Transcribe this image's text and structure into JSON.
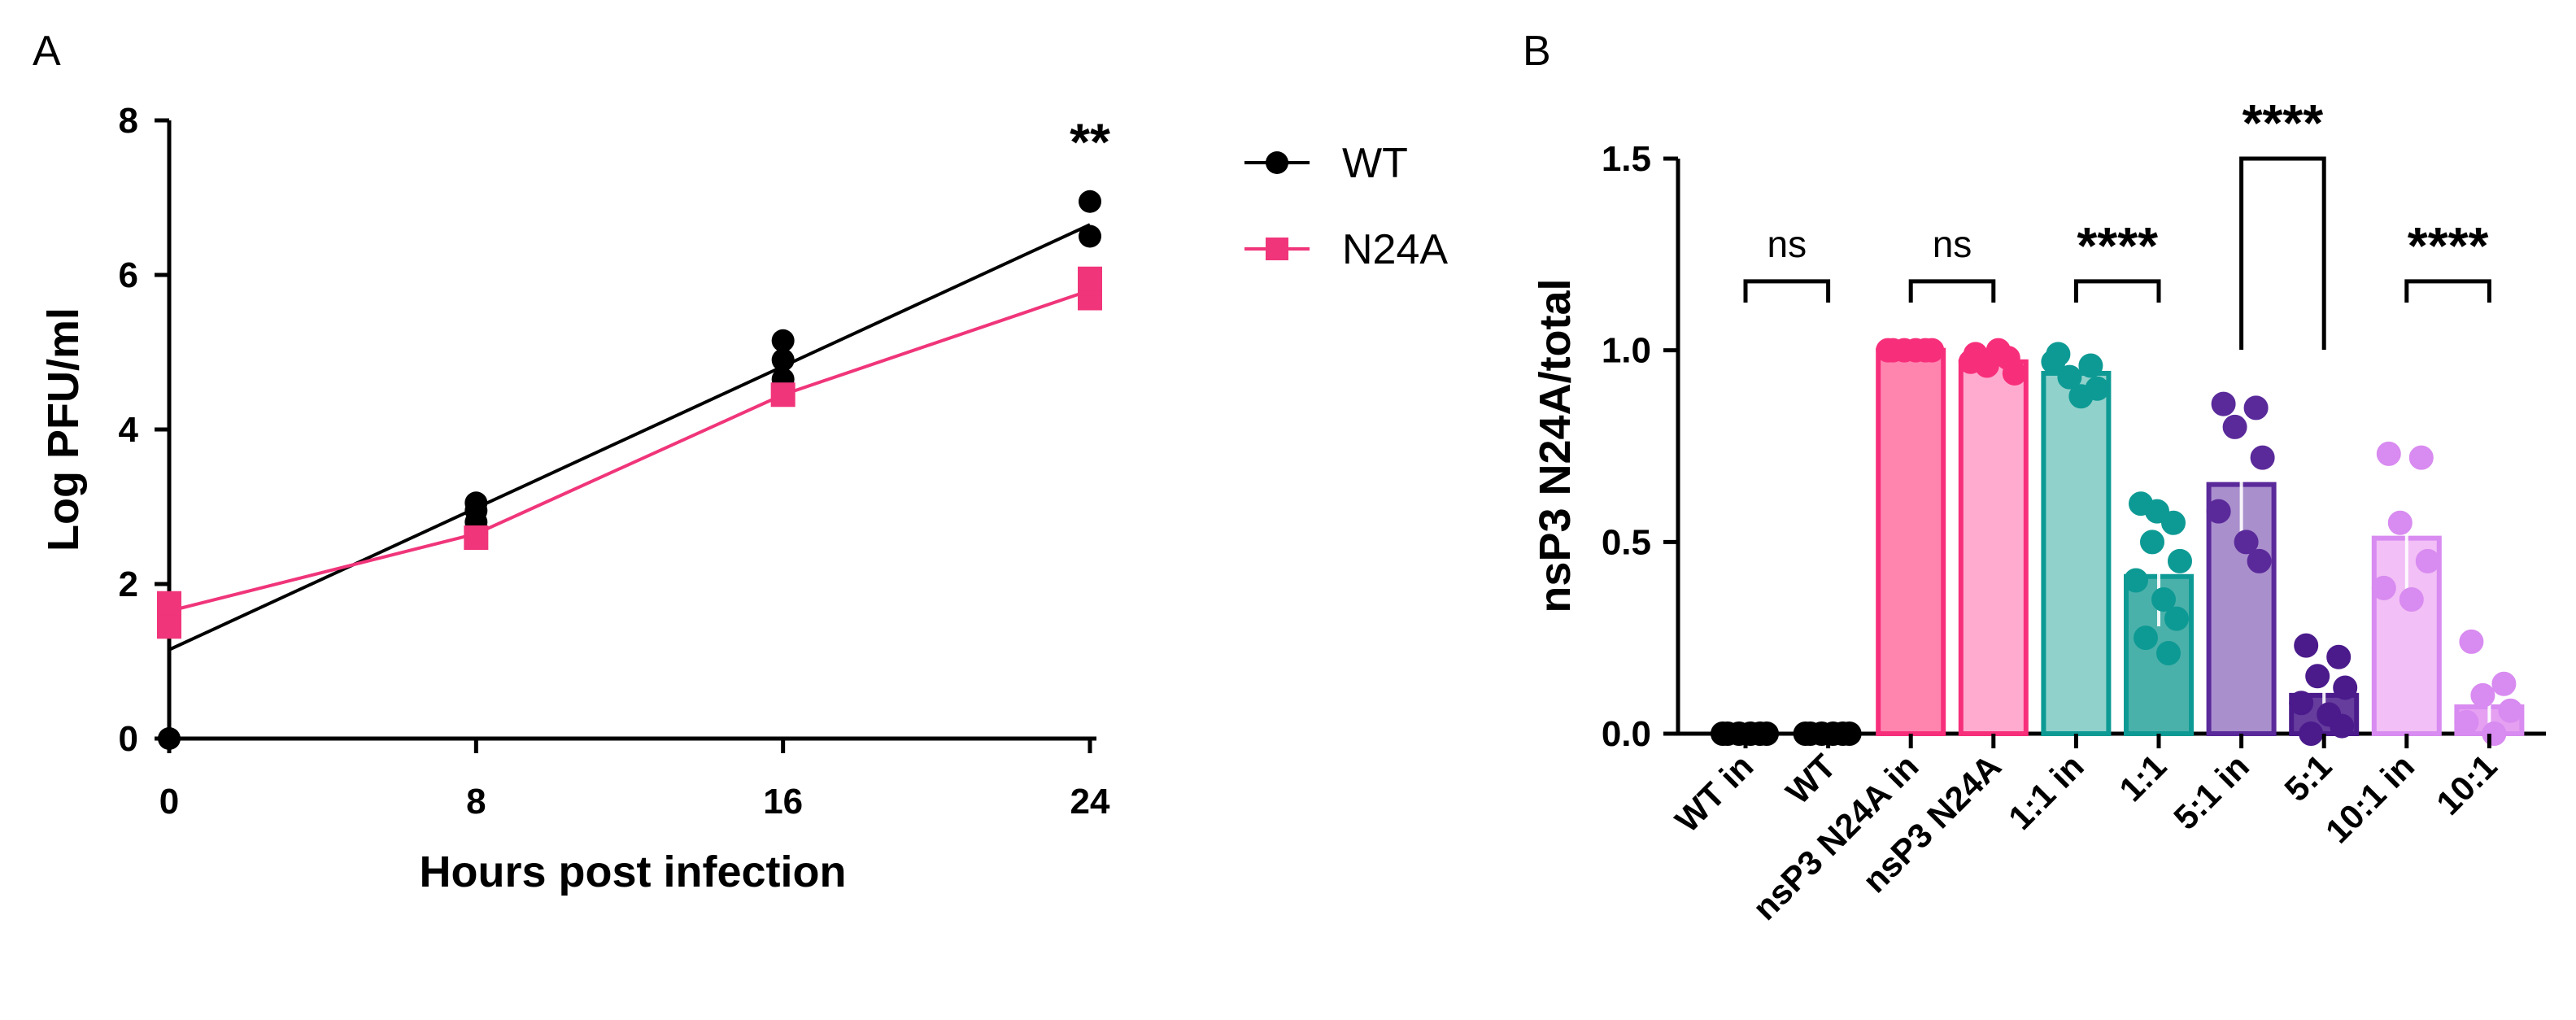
{
  "chart_data": [
    {
      "type": "line",
      "panel_label": "A",
      "xlabel": "Hours post infection",
      "ylabel": "Log PFU/ml",
      "xticks": [
        0,
        8,
        16,
        24
      ],
      "yticks": [
        0,
        2,
        4,
        6,
        8
      ],
      "xlim": [
        0,
        24
      ],
      "ylim": [
        0,
        8
      ],
      "legend_position": "top-right outside",
      "series": [
        {
          "name": "WT",
          "color": "#000000",
          "marker": "circle",
          "points": [
            [
              0,
              1.7
            ],
            [
              0,
              0.0
            ],
            [
              8,
              2.8
            ],
            [
              8,
              2.95
            ],
            [
              8,
              3.05
            ],
            [
              16,
              4.65
            ],
            [
              16,
              4.9
            ],
            [
              16,
              5.15
            ],
            [
              24,
              6.5
            ],
            [
              24,
              6.95
            ]
          ],
          "fit_line": [
            [
              0,
              1.15
            ],
            [
              24,
              6.65
            ]
          ]
        },
        {
          "name": "N24A",
          "color": "#f0357a",
          "marker": "square",
          "points": [
            [
              0,
              1.45
            ],
            [
              0,
              1.75
            ],
            [
              8,
              2.6
            ],
            [
              16,
              4.45
            ],
            [
              24,
              5.7
            ],
            [
              24,
              5.95
            ]
          ],
          "fit_line": [
            [
              0,
              1.65
            ],
            [
              8,
              2.65
            ],
            [
              16,
              4.45
            ],
            [
              24,
              5.8
            ]
          ]
        }
      ],
      "annotations": [
        {
          "text": "**",
          "x": 24,
          "y": 7.7
        }
      ]
    },
    {
      "type": "bar",
      "panel_label": "B",
      "ylabel": "nsP3 N24A/total",
      "yticks": [
        "0.0",
        "0.5",
        "1.0",
        "1.5"
      ],
      "ylim": [
        0,
        1.5
      ],
      "categories": [
        "WT in",
        "WT",
        "nsP3 N24A in",
        "nsP3 N24A",
        "1:1 in",
        "1:1",
        "5:1 in",
        "5:1",
        "10:1 in",
        "10:1"
      ],
      "values": [
        0.0,
        0.0,
        1.0,
        0.97,
        0.94,
        0.41,
        0.65,
        0.1,
        0.51,
        0.07
      ],
      "errors": [
        0.0,
        0.0,
        0.005,
        0.03,
        0.04,
        0.13,
        0.17,
        0.07,
        0.16,
        0.06
      ],
      "bar_fill_colors": [
        "#000000",
        "#000000",
        "#ff6fa0",
        "#ff9cc8",
        "#7cc9c2",
        "#2aa39b",
        "#9b7bc4",
        "#4b1b8c",
        "#f0b4f5",
        "#e08ff0"
      ],
      "bar_edge_colors": [
        "#000000",
        "#000000",
        "#f72f7b",
        "#f72f7b",
        "#0e9a94",
        "#0e9a94",
        "#5a2a9a",
        "#4b1b8c",
        "#d88bf0",
        "#d88bf0"
      ],
      "dots": [
        [
          0,
          0,
          0,
          0,
          0,
          0
        ],
        [
          0,
          0,
          0,
          0,
          0,
          0
        ],
        [
          1,
          1,
          1,
          1,
          1,
          1
        ],
        [
          0.99,
          0.98,
          0.96,
          0.94,
          0.97,
          1.0
        ],
        [
          0.99,
          0.96,
          0.93,
          0.9,
          0.97,
          0.88
        ],
        [
          0.6,
          0.55,
          0.5,
          0.45,
          0.4,
          0.35,
          0.3,
          0.25,
          0.21,
          0.58
        ],
        [
          0.86,
          0.85,
          0.8,
          0.72,
          0.58,
          0.5,
          0.45
        ],
        [
          0.23,
          0.2,
          0.15,
          0.12,
          0.08,
          0.05,
          0.02,
          0.0
        ],
        [
          0.73,
          0.72,
          0.55,
          0.45,
          0.38,
          0.35
        ],
        [
          0.24,
          0.13,
          0.1,
          0.06,
          0.03,
          0.0
        ]
      ],
      "comparisons": [
        {
          "from": 0,
          "to": 1,
          "label": "ns",
          "y": 1.18
        },
        {
          "from": 2,
          "to": 3,
          "label": "ns",
          "y": 1.18
        },
        {
          "from": 4,
          "to": 5,
          "label": "****",
          "y": 1.18
        },
        {
          "from": 6,
          "to": 7,
          "label": "****",
          "y": 1.5
        },
        {
          "from": 8,
          "to": 9,
          "label": "****",
          "y": 1.18
        }
      ]
    }
  ]
}
